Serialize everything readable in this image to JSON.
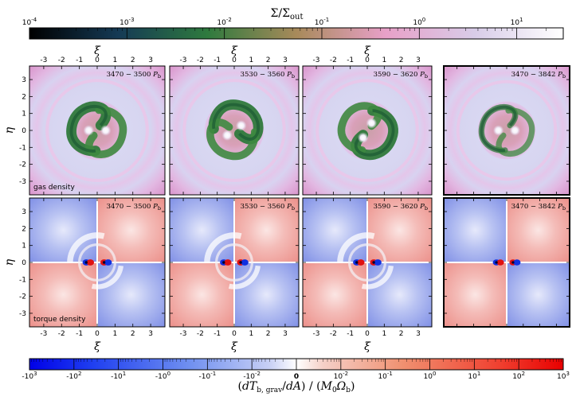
{
  "chart_data": {
    "type": "heatmap",
    "top_colorbar": {
      "title": "Σ/Σ_out",
      "scale": "log",
      "range": [
        0.0001,
        30
      ],
      "tick_labels": [
        "10^-4",
        "10^-3",
        "10^-2",
        "10^-1",
        "10^0",
        "10^1"
      ],
      "tick_values": [
        -4,
        -3,
        -2,
        -1,
        0,
        1
      ]
    },
    "bottom_colorbar": {
      "title": "(dT_b,grav/dA)/(M_0 Ω_b)",
      "scale": "symlog",
      "tick_labels": [
        "-10^3",
        "-10^2",
        "-10^1",
        "-10^0",
        "-10^-1",
        "-10^-2",
        "0",
        "10^-2",
        "10^-1",
        "10^0",
        "10^1",
        "10^2",
        "10^3"
      ]
    },
    "x_axis_label": "ξ",
    "y_axis_label": "η",
    "xlim": [
      -3.8,
      3.8
    ],
    "ylim": [
      -3.8,
      3.8
    ],
    "axis_tick_values": [
      -3,
      -2,
      -1,
      0,
      1,
      2,
      3
    ],
    "rows": [
      {
        "name": "gas density",
        "label": "gas density",
        "panels": [
          {
            "title": "3470 − 3500 P_b",
            "binary_angle": 0,
            "spiral_phase": 0
          },
          {
            "title": "3530 − 3560 P_b",
            "binary_angle": 35,
            "spiral_phase": 90
          },
          {
            "title": "3590 − 3620 P_b",
            "binary_angle": 60,
            "spiral_phase": 190
          },
          {
            "title": "3470 − 3842 P_b",
            "binary_angle": 0,
            "spiral_phase": 0,
            "averaged": true
          }
        ]
      },
      {
        "name": "torque density",
        "label": "torque density",
        "panels": [
          {
            "title": "3470 − 3500 P_b",
            "binary_angle": 0
          },
          {
            "title": "3530 − 3560 P_b",
            "binary_angle": 0
          },
          {
            "title": "3590 − 3620 P_b",
            "binary_angle": 0
          },
          {
            "title": "3470 − 3842 P_b",
            "binary_angle": 0,
            "averaged": true
          }
        ]
      }
    ]
  },
  "colors": {
    "density_stops": [
      "#000000",
      "#153a55",
      "#2e7a3e",
      "#a88a5a",
      "#e8a0c8",
      "#d8cce8",
      "#ffffff"
    ],
    "torque_negative": "#1030e0",
    "torque_positive": "#e01010",
    "torque_zero": "#ffffff"
  }
}
